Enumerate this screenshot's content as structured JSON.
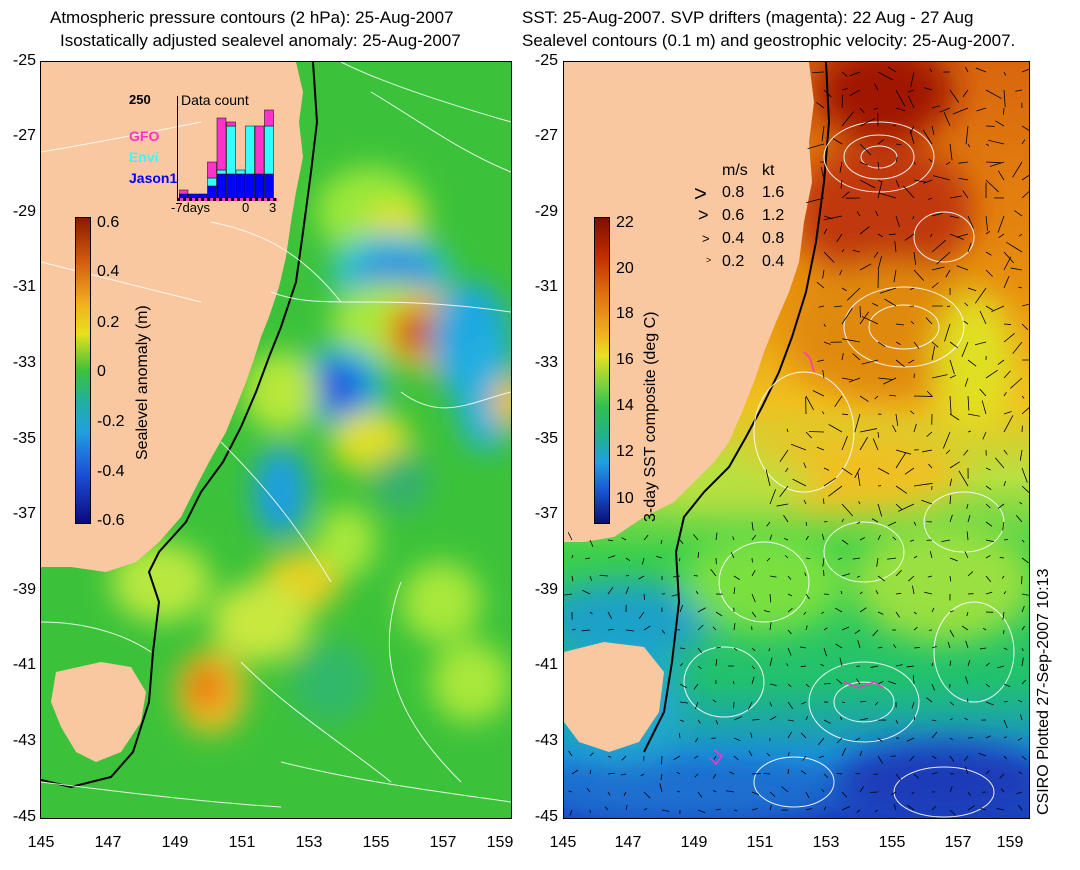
{
  "left": {
    "title_line1": "Atmospheric pressure contours (2 hPa): 25-Aug-2007",
    "title_line2": "Isostatically adjusted sealevel anomaly: 25-Aug-2007",
    "colorbar": {
      "title": "Sealevel anomaly (m)",
      "labels": [
        "0.6",
        "0.4",
        "0.2",
        "0",
        "-0.2",
        "-0.4",
        "-0.6"
      ]
    },
    "inset": {
      "title": "Data count",
      "ymax_label": "250",
      "legend": [
        "GFO",
        "Envi",
        "Jason1"
      ],
      "xlabel_left": "-7days",
      "xlabel_mid": "0",
      "xlabel_right": "3",
      "legend_colors": [
        "#ff33cc",
        "#33ffff",
        "#0000ff"
      ],
      "chart_data": {
        "type": "bar",
        "title": "Data count",
        "series": [
          {
            "name": "GFO",
            "values": [
              10,
              0,
              0,
              40,
              130,
              10,
              0,
              0,
              120,
              40
            ]
          },
          {
            "name": "Envi",
            "values": [
              0,
              0,
              0,
              20,
              10,
              120,
              10,
              120,
              0,
              120
            ]
          },
          {
            "name": "Jason1",
            "values": [
              10,
              10,
              10,
              30,
              60,
              60,
              60,
              60,
              60,
              60
            ]
          }
        ]
      }
    }
  },
  "right": {
    "title_line1": "SST: 25-Aug-2007. SVP drifters (magenta): 22 Aug - 27 Aug",
    "title_line2": "Sealevel contours (0.1 m) and geostrophic velocity: 25-Aug-2007.",
    "colorbar": {
      "title": "3-day SST composite (deg C)",
      "labels": [
        "22",
        "20",
        "18",
        "16",
        "14",
        "12",
        "10"
      ]
    },
    "speed_legend": {
      "header_ms": "m/s",
      "header_kt": "kt",
      "rows": [
        {
          "ms": "0.8",
          "kt": "1.6"
        },
        {
          "ms": "0.6",
          "kt": "1.2"
        },
        {
          "ms": "0.4",
          "kt": "0.8"
        },
        {
          "ms": "0.2",
          "kt": "0.4"
        }
      ]
    }
  },
  "axes": {
    "y_labels": [
      "-25",
      "-27",
      "-29",
      "-31",
      "-33",
      "-35",
      "-37",
      "-39",
      "-41",
      "-43",
      "-45"
    ],
    "x_labels": [
      "145",
      "147",
      "149",
      "151",
      "153",
      "155",
      "157",
      "159"
    ]
  },
  "credit": "CSIRO Plotted 27-Sep-2007 10:13",
  "colors": {
    "land": "#f9c8a0",
    "slaPositive": "#d4580e",
    "slaNegative": "#1a3fd6",
    "sstWarm": "#b01a00",
    "sstCold": "#102aa0"
  }
}
